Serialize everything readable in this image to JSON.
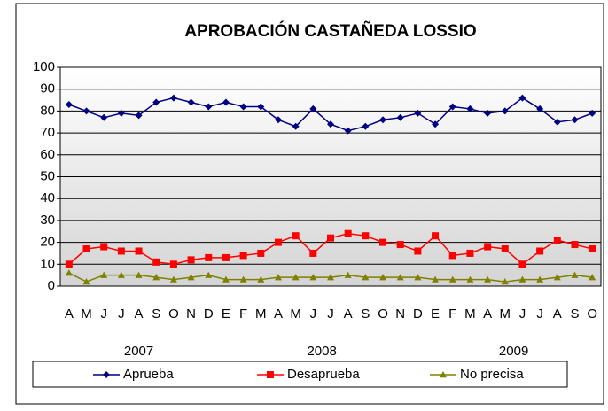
{
  "chart_data": {
    "type": "line",
    "title": "APROBACIÓN CASTAÑEDA LOSSIO",
    "categories": [
      "A",
      "M",
      "J",
      "J",
      "A",
      "S",
      "O",
      "N",
      "D",
      "E",
      "F",
      "M",
      "A",
      "M",
      "J",
      "J",
      "A",
      "S",
      "O",
      "N",
      "D",
      "E",
      "F",
      "M",
      "A",
      "M",
      "J",
      "J",
      "A",
      "S",
      "O"
    ],
    "year_labels": [
      "2007",
      "2008",
      "2009"
    ],
    "ylim": [
      0,
      100
    ],
    "yticks": [
      0,
      10,
      20,
      30,
      40,
      50,
      60,
      70,
      80,
      90,
      100
    ],
    "grid": true,
    "series": [
      {
        "name": "Aprueba",
        "color": "#000080",
        "marker": "diamond",
        "values": [
          83,
          80,
          77,
          79,
          78,
          84,
          86,
          84,
          82,
          84,
          82,
          82,
          76,
          73,
          81,
          74,
          71,
          73,
          76,
          77,
          79,
          74,
          82,
          81,
          79,
          80,
          86,
          81,
          75,
          76,
          79
        ]
      },
      {
        "name": "Desaprueba",
        "color": "#ff0000",
        "marker": "square",
        "values": [
          10,
          17,
          18,
          16,
          16,
          11,
          10,
          12,
          13,
          13,
          14,
          15,
          20,
          23,
          15,
          22,
          24,
          23,
          20,
          19,
          16,
          23,
          14,
          15,
          18,
          17,
          10,
          16,
          21,
          19,
          17
        ]
      },
      {
        "name": "No precisa",
        "color": "#808000",
        "marker": "triangle",
        "values": [
          6,
          2,
          5,
          5,
          5,
          4,
          3,
          4,
          5,
          3,
          3,
          3,
          4,
          4,
          4,
          4,
          5,
          4,
          4,
          4,
          4,
          3,
          3,
          3,
          3,
          2,
          3,
          3,
          4,
          5,
          4
        ]
      }
    ]
  }
}
